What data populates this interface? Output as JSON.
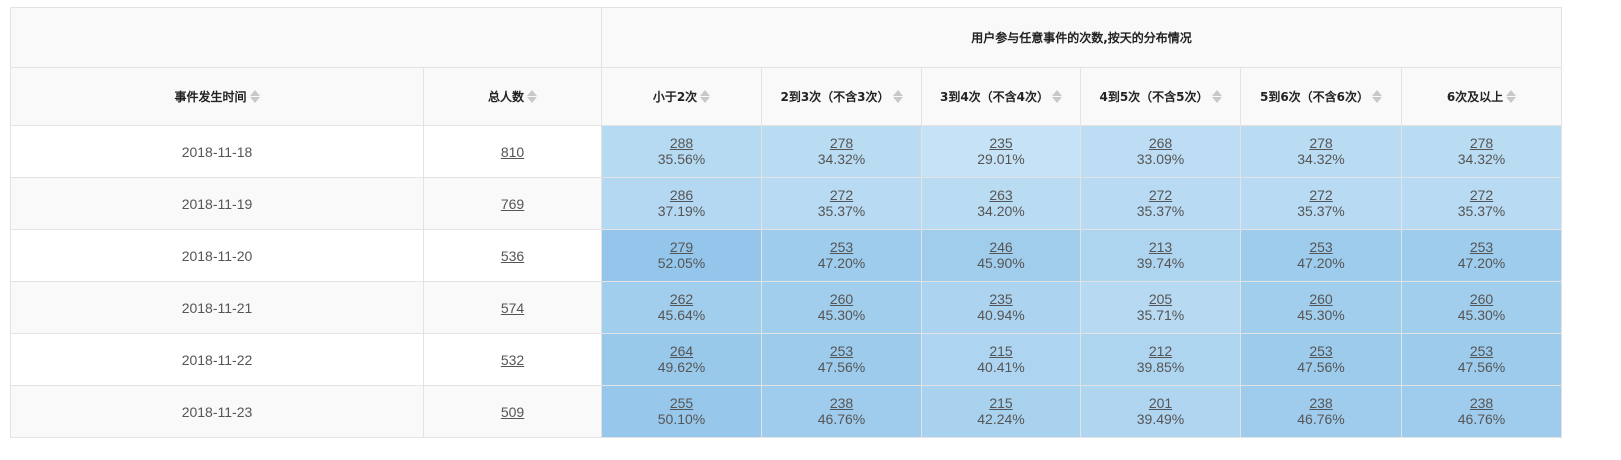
{
  "header": {
    "group_title": "用户参与任意事件的次数,按天的分布情况",
    "columns": [
      "事件发生时间",
      "总人数",
      "小于2次",
      "2到3次（不含3次）",
      "3到4次（不含4次）",
      "4到5次（不含5次）",
      "5到6次（不含6次）",
      "6次及以上"
    ]
  },
  "colors": {
    "cell_light": "#c6e2f6",
    "cell_dark": "#93c6ea"
  },
  "rows": [
    {
      "date": "2018-11-18",
      "total": "810",
      "cells": [
        {
          "n": "288",
          "p": "35.56%"
        },
        {
          "n": "278",
          "p": "34.32%"
        },
        {
          "n": "235",
          "p": "29.01%"
        },
        {
          "n": "268",
          "p": "33.09%"
        },
        {
          "n": "278",
          "p": "34.32%"
        },
        {
          "n": "278",
          "p": "34.32%"
        }
      ]
    },
    {
      "date": "2018-11-19",
      "total": "769",
      "cells": [
        {
          "n": "286",
          "p": "37.19%"
        },
        {
          "n": "272",
          "p": "35.37%"
        },
        {
          "n": "263",
          "p": "34.20%"
        },
        {
          "n": "272",
          "p": "35.37%"
        },
        {
          "n": "272",
          "p": "35.37%"
        },
        {
          "n": "272",
          "p": "35.37%"
        }
      ]
    },
    {
      "date": "2018-11-20",
      "total": "536",
      "cells": [
        {
          "n": "279",
          "p": "52.05%"
        },
        {
          "n": "253",
          "p": "47.20%"
        },
        {
          "n": "246",
          "p": "45.90%"
        },
        {
          "n": "213",
          "p": "39.74%"
        },
        {
          "n": "253",
          "p": "47.20%"
        },
        {
          "n": "253",
          "p": "47.20%"
        }
      ]
    },
    {
      "date": "2018-11-21",
      "total": "574",
      "cells": [
        {
          "n": "262",
          "p": "45.64%"
        },
        {
          "n": "260",
          "p": "45.30%"
        },
        {
          "n": "235",
          "p": "40.94%"
        },
        {
          "n": "205",
          "p": "35.71%"
        },
        {
          "n": "260",
          "p": "45.30%"
        },
        {
          "n": "260",
          "p": "45.30%"
        }
      ]
    },
    {
      "date": "2018-11-22",
      "total": "532",
      "cells": [
        {
          "n": "264",
          "p": "49.62%"
        },
        {
          "n": "253",
          "p": "47.56%"
        },
        {
          "n": "215",
          "p": "40.41%"
        },
        {
          "n": "212",
          "p": "39.85%"
        },
        {
          "n": "253",
          "p": "47.56%"
        },
        {
          "n": "253",
          "p": "47.56%"
        }
      ]
    },
    {
      "date": "2018-11-23",
      "total": "509",
      "cells": [
        {
          "n": "255",
          "p": "50.10%"
        },
        {
          "n": "238",
          "p": "46.76%"
        },
        {
          "n": "215",
          "p": "42.24%"
        },
        {
          "n": "201",
          "p": "39.49%"
        },
        {
          "n": "238",
          "p": "46.76%"
        },
        {
          "n": "238",
          "p": "46.76%"
        }
      ]
    }
  ]
}
